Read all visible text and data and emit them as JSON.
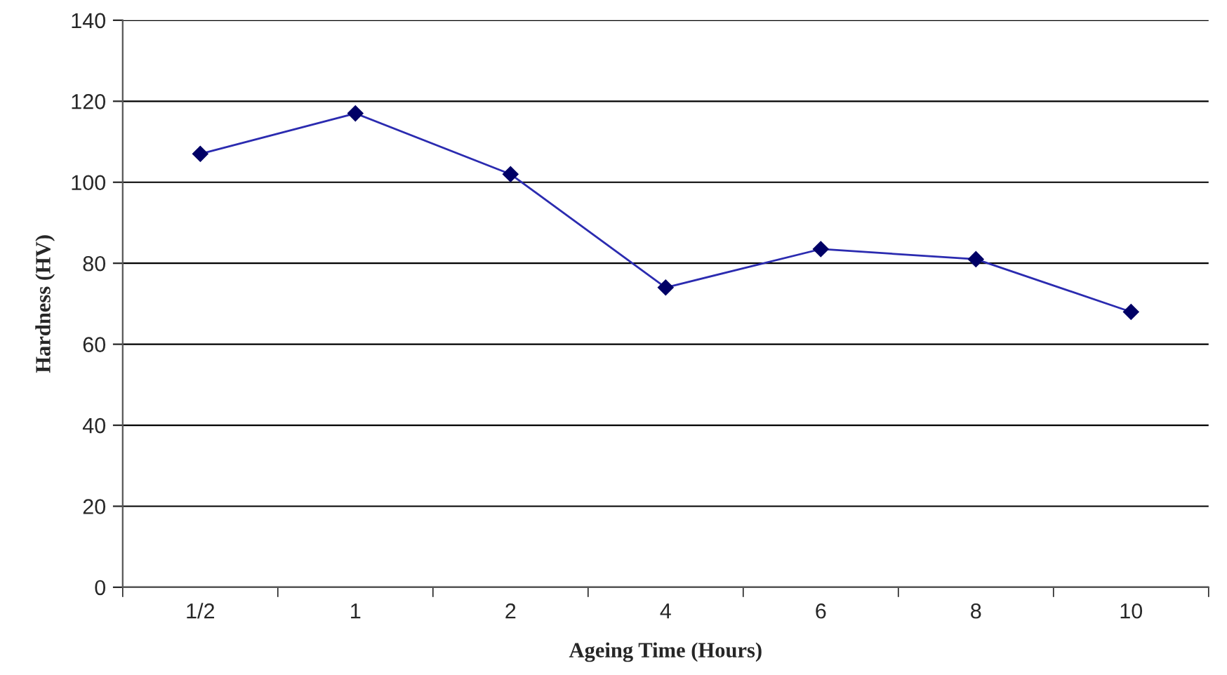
{
  "chart_data": {
    "type": "line",
    "xlabel": "Ageing Time (Hours)",
    "ylabel": "Hardness (HV)",
    "categories": [
      "1/2",
      "1",
      "2",
      "4",
      "6",
      "8",
      "10"
    ],
    "series": [
      {
        "color": "#2b2bb0",
        "values": [
          107,
          117,
          102,
          74,
          83.5,
          81,
          68
        ]
      }
    ],
    "ylim": [
      0,
      140
    ],
    "yticks": [
      0,
      20,
      40,
      60,
      80,
      100,
      120,
      140
    ],
    "grid": "y",
    "marker": "diamond",
    "line_style": "solid",
    "legend": false
  }
}
